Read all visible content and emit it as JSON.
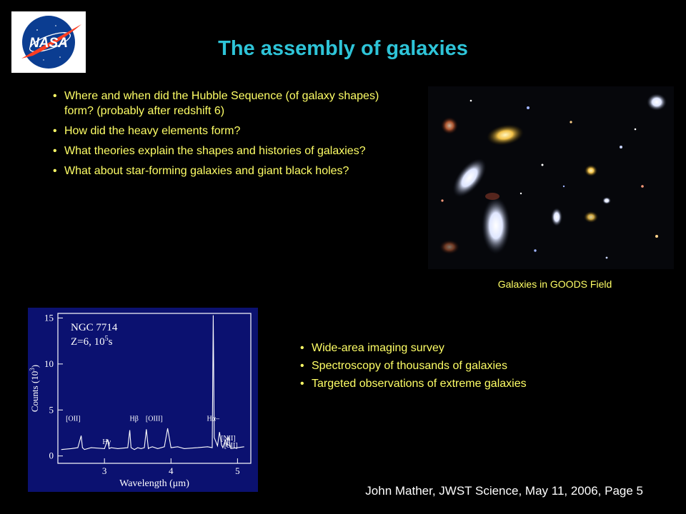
{
  "slide": {
    "title": "The assembly of galaxies",
    "logo_text": "NASA",
    "questions": [
      "Where and when did the Hubble Sequence (of galaxy shapes) form? (probably after redshift 6)",
      "How did the heavy elements form?",
      "What theories explain the shapes and histories of galaxies?",
      "What about star-forming galaxies and giant black holes?"
    ],
    "photo_caption": "Galaxies in GOODS Field",
    "methods": [
      "Wide-area imaging survey",
      "Spectroscopy of thousands of galaxies",
      "Targeted observations of extreme galaxies"
    ],
    "footer": "John Mather, JWST Science,  May 11, 2006, Page 5"
  },
  "chart_data": {
    "type": "line",
    "annotations": [
      "NGC 7714",
      "Z=6, 10",
      "5",
      "s"
    ],
    "xlabel": "Wavelength (μm)",
    "ylabel": "Counts (10",
    "ylabel_sup": "3",
    "ylabel_end": ")",
    "xlim": [
      2.3,
      5.2
    ],
    "ylim": [
      -0.8,
      15.5
    ],
    "x_ticks": [
      "3",
      "4",
      "5"
    ],
    "y_ticks": [
      "0",
      "5",
      "10",
      "15"
    ],
    "line_labels": [
      {
        "text": "[OII]",
        "x": 2.42,
        "y": 3.8
      },
      {
        "text": "Hβ",
        "x": 3.38,
        "y": 3.8
      },
      {
        "text": "[OIII]",
        "x": 3.62,
        "y": 3.8
      },
      {
        "text": "Hα–",
        "x": 4.54,
        "y": 3.8
      },
      {
        "text": "[NII]",
        "x": 4.75,
        "y": 1.7
      },
      {
        "text": "[SII]",
        "x": 4.8,
        "y": 0.9
      },
      {
        "text": "Hγ",
        "x": 2.97,
        "y": 1.3
      }
    ],
    "series": [
      {
        "x": [
          2.35,
          2.5,
          2.6,
          2.65,
          2.67,
          2.7,
          2.8,
          3.0,
          3.05,
          3.07,
          3.1,
          3.2,
          3.35,
          3.38,
          3.4,
          3.45,
          3.5,
          3.55,
          3.6,
          3.63,
          3.66,
          3.68,
          3.72,
          3.8,
          3.9,
          3.95,
          4.0,
          4.1,
          4.2,
          4.4,
          4.55,
          4.62,
          4.635,
          4.65,
          4.7,
          4.73,
          4.76,
          4.78,
          4.82,
          4.84,
          4.86,
          4.9,
          5.0,
          5.1
        ],
        "y": [
          0.7,
          0.8,
          0.9,
          2.2,
          0.9,
          0.7,
          0.9,
          0.8,
          1.8,
          0.8,
          0.9,
          0.8,
          0.9,
          2.8,
          0.9,
          0.7,
          0.9,
          0.8,
          0.9,
          2.9,
          0.8,
          0.9,
          1.0,
          0.8,
          1.0,
          3.0,
          0.9,
          1.0,
          0.8,
          0.9,
          1.0,
          0.9,
          15.3,
          2.0,
          1.1,
          2.6,
          1.2,
          0.9,
          1.8,
          1.0,
          2.1,
          0.8,
          0.9,
          1.0
        ]
      }
    ]
  }
}
